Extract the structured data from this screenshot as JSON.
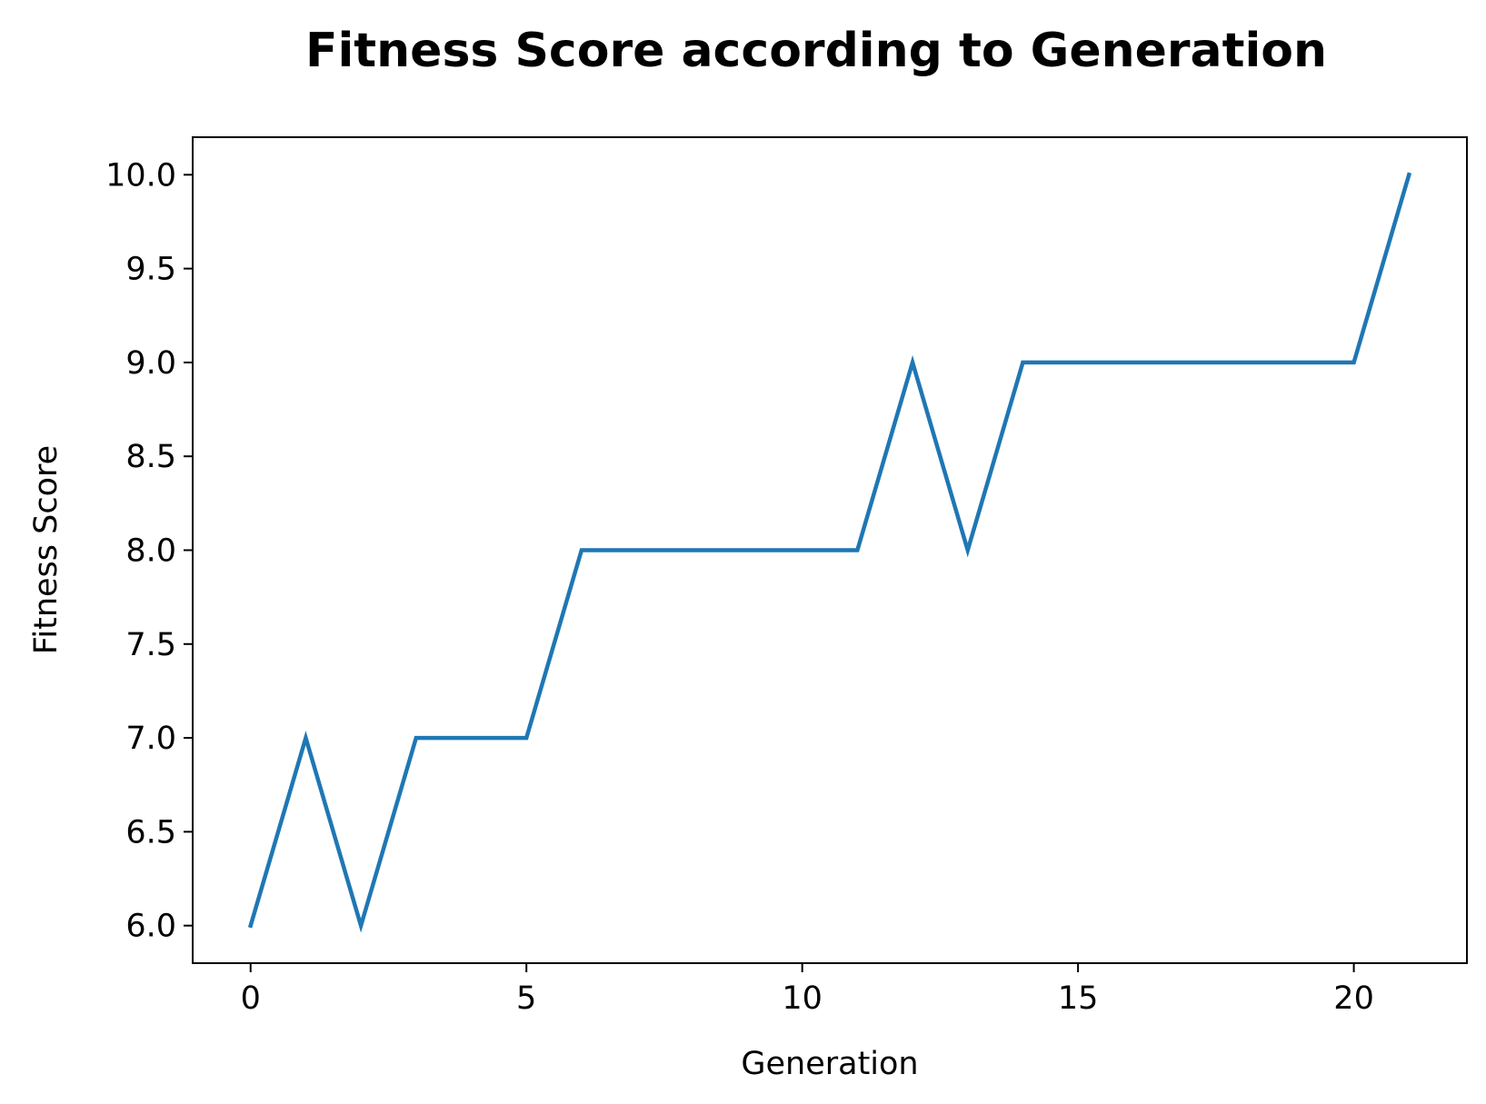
{
  "chart_data": {
    "type": "line",
    "title": "Fitness Score according to Generation",
    "xlabel": "Generation",
    "ylabel": "Fitness Score",
    "x": [
      0,
      1,
      2,
      3,
      4,
      5,
      6,
      7,
      8,
      9,
      10,
      11,
      12,
      13,
      14,
      15,
      16,
      17,
      18,
      19,
      20,
      21
    ],
    "series": [
      {
        "values": [
          6,
          7,
          6,
          7,
          7,
          7,
          8,
          8,
          8,
          8,
          8,
          8,
          9,
          8,
          9,
          9,
          9,
          9,
          9,
          9,
          9,
          10
        ],
        "color": "#1f77b4"
      }
    ],
    "xlim": [
      -1.05,
      22.05
    ],
    "ylim": [
      5.8,
      10.2
    ],
    "xticks": [
      0,
      5,
      10,
      15,
      20
    ],
    "xtick_labels": [
      "0",
      "5",
      "10",
      "15",
      "20"
    ],
    "yticks": [
      6.0,
      6.5,
      7.0,
      7.5,
      8.0,
      8.5,
      9.0,
      9.5,
      10.0
    ],
    "ytick_labels": [
      "6.0",
      "6.5",
      "7.0",
      "7.5",
      "8.0",
      "8.5",
      "9.0",
      "9.5",
      "10.0"
    ],
    "grid": false,
    "legend": false
  }
}
